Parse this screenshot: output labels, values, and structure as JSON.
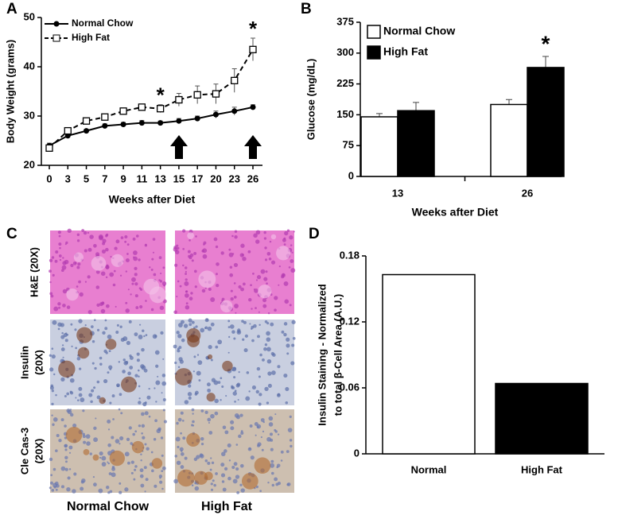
{
  "panel_letters": [
    "A",
    "B",
    "C",
    "D"
  ],
  "chart_data": [
    {
      "type": "line",
      "xlabel": "Weeks after Diet",
      "ylabel": "Body Weight (grams)",
      "categories": [
        "0",
        "3",
        "5",
        "7",
        "9",
        "11",
        "13",
        "15",
        "17",
        "20",
        "23",
        "26"
      ],
      "ylim": [
        20,
        50
      ],
      "yticks": [
        20,
        30,
        40,
        50
      ],
      "legend": "top-left",
      "series": [
        {
          "name": "Normal Chow",
          "color": "#000000",
          "linestyle": "solid",
          "marker": "circle",
          "values": [
            24,
            26,
            27,
            28,
            28.3,
            28.6,
            28.6,
            29,
            29.5,
            30.3,
            31,
            31.8
          ],
          "errors": [
            0.5,
            0.4,
            0.3,
            0.4,
            0.4,
            0.5,
            0.4,
            0.5,
            0.5,
            0.7,
            0.8,
            0.5
          ]
        },
        {
          "name": "High Fat",
          "color": "#000000",
          "linestyle": "dashed",
          "marker": "square",
          "values": [
            23.5,
            27,
            29,
            29.8,
            31,
            31.8,
            31.5,
            33.3,
            34.3,
            34.5,
            37.2,
            43.5
          ],
          "errors": [
            0.5,
            0.5,
            0.4,
            0.5,
            0.6,
            0.5,
            0.8,
            1.3,
            1.8,
            2,
            2.4,
            2.3
          ]
        }
      ],
      "annotations": [
        {
          "text": "*",
          "category": "13",
          "series": "High Fat"
        },
        {
          "text": "*",
          "category": "26",
          "series": "High Fat"
        }
      ]
    },
    {
      "type": "grouped-bar",
      "xlabel": "Weeks after Diet",
      "ylabel": "Glucose (mg/dL)",
      "categories": [
        "13",
        "26"
      ],
      "ylim": [
        0,
        375
      ],
      "yticks": [
        0,
        75,
        150,
        225,
        300,
        375
      ],
      "legend": "top-left",
      "series": [
        {
          "name": "Normal Chow",
          "color": "#ffffff",
          "values": [
            145,
            175
          ],
          "errors": [
            8,
            12
          ]
        },
        {
          "name": "High Fat",
          "color": "#000000",
          "values": [
            160,
            265
          ],
          "errors": [
            20,
            27
          ]
        }
      ],
      "annotations": [
        {
          "text": "*",
          "category": "26",
          "series": "High Fat"
        }
      ]
    },
    {
      "type": "bar",
      "ylabel": [
        "Insulin Staining - Normalized",
        "to total β-Cell Area (A.U.)"
      ],
      "categories": [
        "Normal",
        "High Fat"
      ],
      "values": [
        0.163,
        0.064
      ],
      "colors": [
        "#ffffff",
        "#000000"
      ],
      "ylim": [
        0,
        0.18
      ],
      "yticks": [
        0,
        0.06,
        0.12,
        0.18
      ]
    }
  ],
  "panel_c": {
    "rows": [
      [
        "H&E (20X)"
      ],
      [
        "Insulin",
        "(20X)"
      ],
      [
        "Cle Cas-3",
        "(20X)"
      ]
    ],
    "columns": [
      "Normal Chow",
      "High Fat"
    ]
  }
}
